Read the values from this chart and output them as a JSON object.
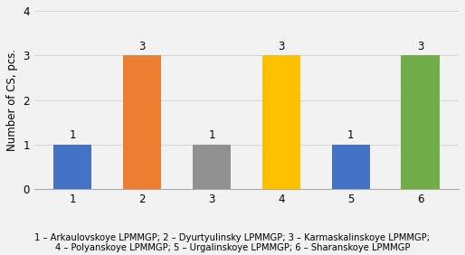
{
  "categories": [
    "1",
    "2",
    "3",
    "4",
    "5",
    "6"
  ],
  "values": [
    1,
    3,
    1,
    3,
    1,
    3
  ],
  "bar_colors": [
    "#4472C4",
    "#ED7D31",
    "#909090",
    "#FFC000",
    "#4472C4",
    "#70AD47"
  ],
  "ylabel": "Number of CS, pcs.",
  "ylim": [
    0,
    4
  ],
  "yticks": [
    0,
    1,
    2,
    3,
    4
  ],
  "xlabel_labels": [
    "1",
    "2",
    "3",
    "4",
    "5",
    "6"
  ],
  "bar_label_fontsize": 8.5,
  "axis_tick_fontsize": 8.5,
  "ylabel_fontsize": 8.5,
  "legend_text_line1": "1 – Arkaulovskoye LPMMGP; 2 – Dyurtyulinsky LPMMGP; 3 – Karmaskalinskoye LPMMGP;",
  "legend_text_line2": "4 – Polyanskoye LPMMGP; 5 – Urgalinskoye LPMMGP; 6 – Sharanskoye LPMMGP",
  "legend_fontsize": 7.2,
  "background_color": "#f2f2f2",
  "grid_color": "#d9d9d9",
  "bar_width": 0.55
}
